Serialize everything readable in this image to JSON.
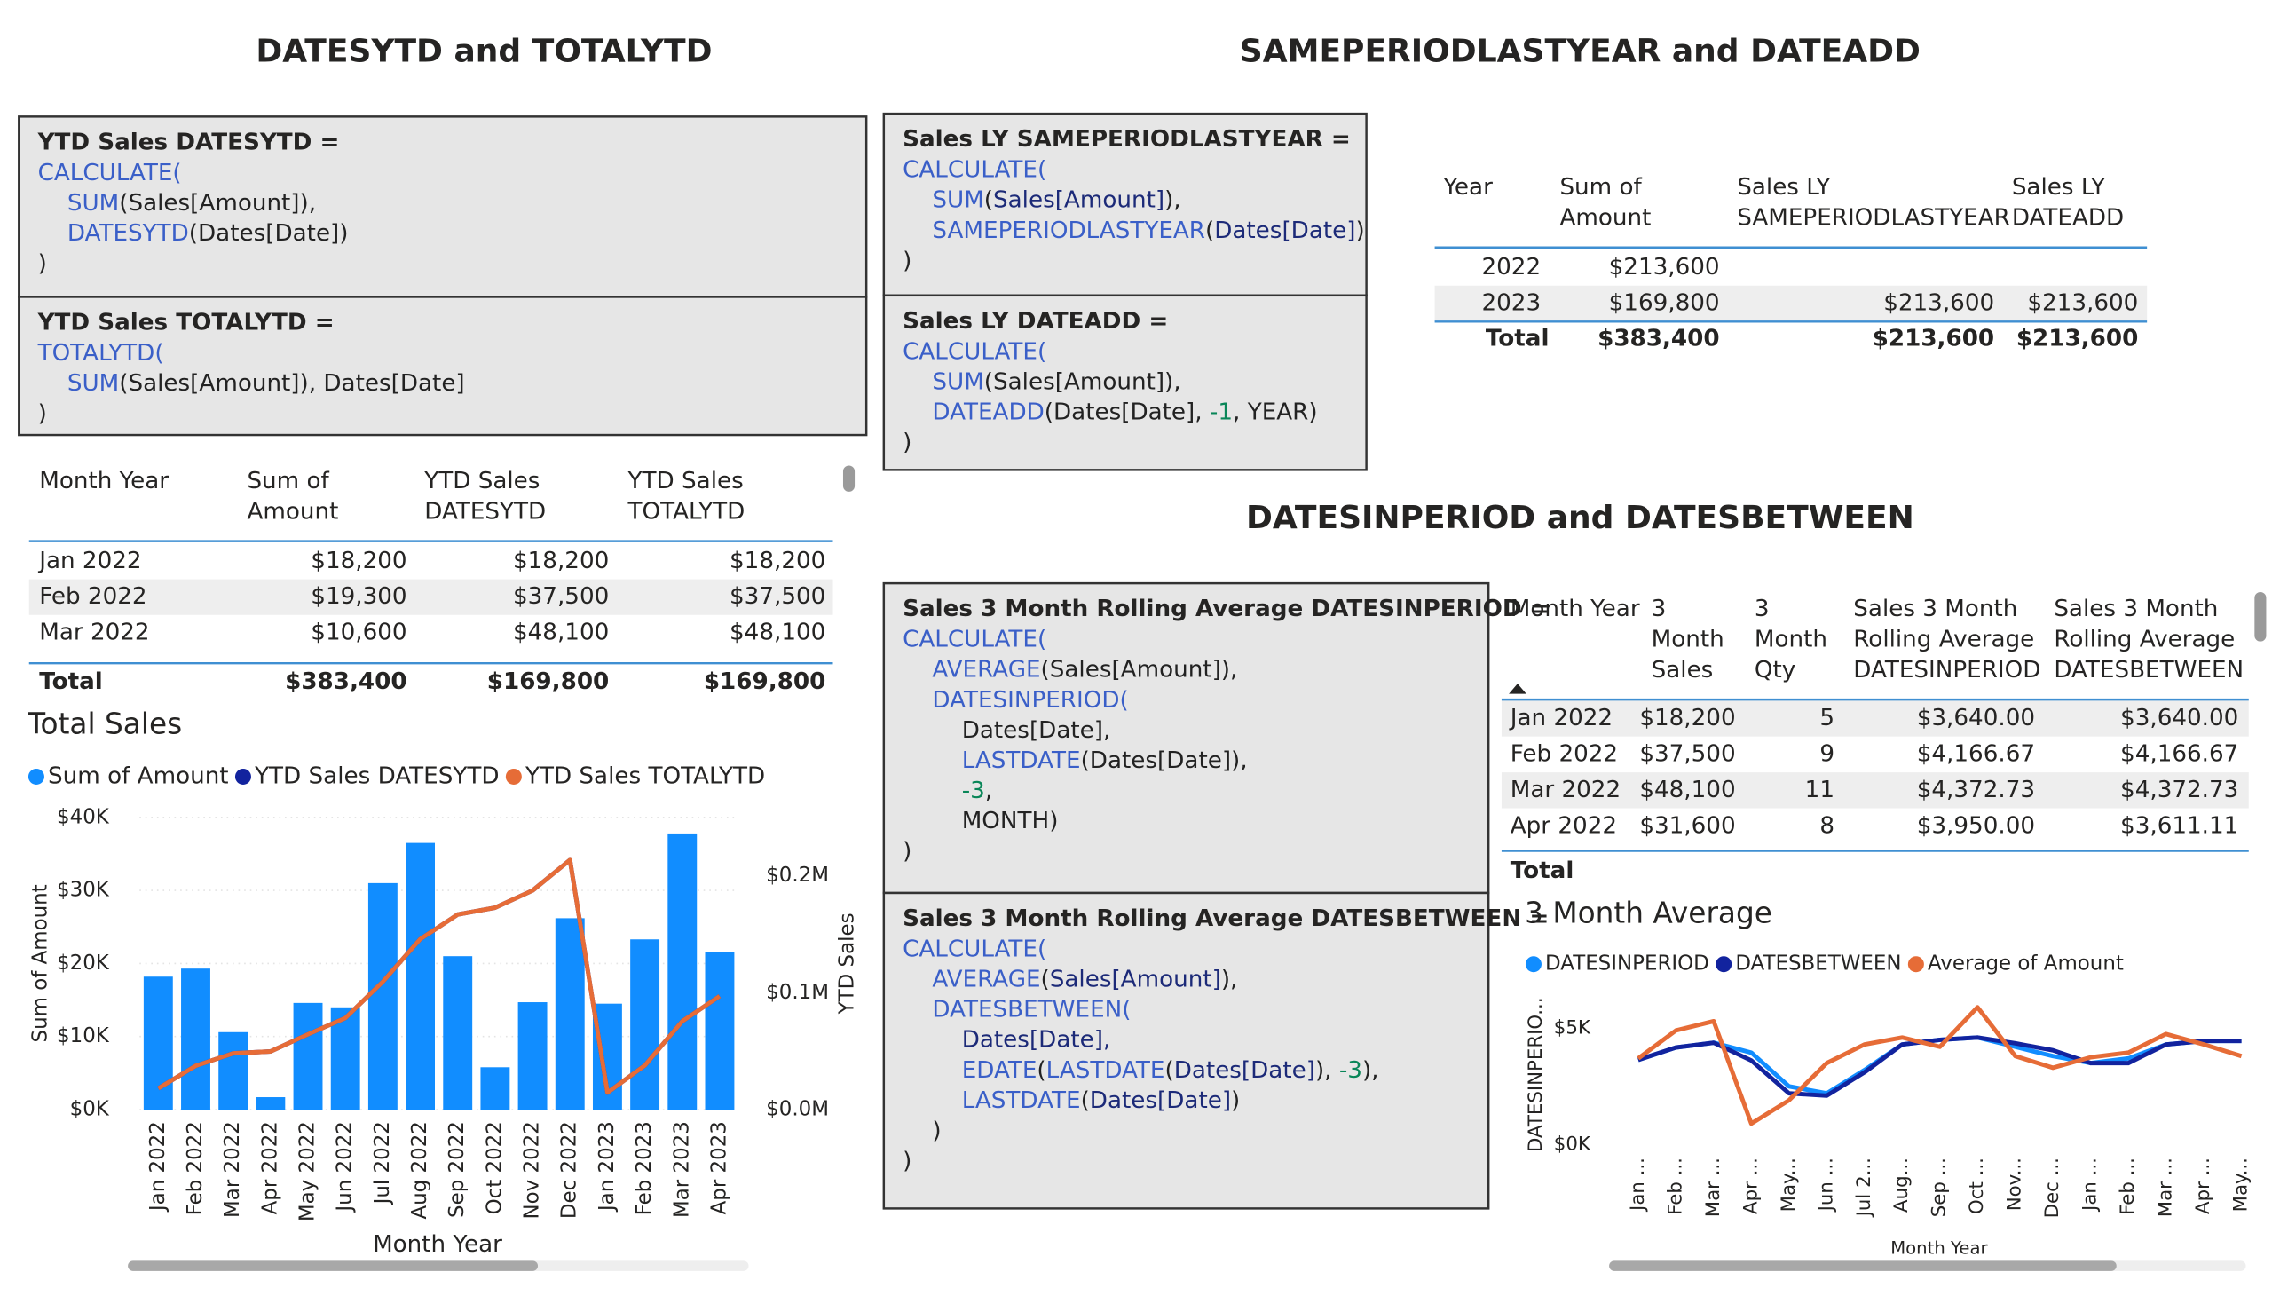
{
  "section_titles": [
    "DATESYTD and TOTALYTD",
    "SAMEPERIODLASTYEAR and DATEADD",
    "DATESINPERIOD and DATESBETWEEN"
  ],
  "code_boxes": [
    {
      "title": "YTD Sales DATESYTD =",
      "lines": [
        [
          [
            "CALCULATE(",
            "#3a5fc8"
          ]
        ],
        [
          [
            "    SUM",
            "#3a5fc8"
          ],
          [
            "(Sales[Amount]),",
            "#222222"
          ]
        ],
        [
          [
            "    DATESYTD",
            "#3a5fc8"
          ],
          [
            "(Dates[Date])",
            "#222222"
          ]
        ],
        [
          [
            ")",
            "#222222"
          ]
        ]
      ]
    },
    {
      "title": "YTD Sales TOTALYTD =",
      "lines": [
        [
          [
            "TOTALYTD(",
            "#3a5fc8"
          ]
        ],
        [
          [
            "    SUM",
            "#3a5fc8"
          ],
          [
            "(Sales[Amount]), Dates[Date]",
            "#222222"
          ]
        ],
        [
          [
            ")",
            "#222222"
          ]
        ]
      ]
    },
    {
      "title": "Sales LY SAMEPERIODLASTYEAR =",
      "lines": [
        [
          [
            "CALCULATE(",
            "#3a5fc8"
          ]
        ],
        [
          [
            "    SUM",
            "#3a5fc8"
          ],
          [
            "(",
            "#222222"
          ],
          [
            "Sales[Amount]",
            "#1c2a78"
          ],
          [
            "),",
            "#222222"
          ]
        ],
        [
          [
            "    SAMEPERIODLASTYEAR",
            "#3a5fc8"
          ],
          [
            "(",
            "#222222"
          ],
          [
            "Dates[Date]",
            "#1c2a78"
          ],
          [
            ")",
            "#222222"
          ]
        ],
        [
          [
            ")",
            "#222222"
          ]
        ]
      ]
    },
    {
      "title": "Sales LY DATEADD =",
      "lines": [
        [
          [
            "CALCULATE(",
            "#3a5fc8"
          ]
        ],
        [
          [
            "    SUM",
            "#3a5fc8"
          ],
          [
            "(Sales[Amount]),",
            "#222222"
          ]
        ],
        [
          [
            "    DATEADD",
            "#3a5fc8"
          ],
          [
            "(Dates[Date], ",
            "#222222"
          ],
          [
            "-1",
            "#098658"
          ],
          [
            ", YEAR)",
            "#222222"
          ]
        ],
        [
          [
            ")",
            "#222222"
          ]
        ]
      ]
    },
    {
      "title": "Sales 3 Month Rolling Average DATESINPERIOD =",
      "lines": [
        [
          [
            "CALCULATE(",
            "#3a5fc8"
          ]
        ],
        [
          [
            "    AVERAGE",
            "#3a5fc8"
          ],
          [
            "(Sales[Amount]),",
            "#222222"
          ]
        ],
        [
          [
            "    DATESINPERIOD(",
            "#3a5fc8"
          ]
        ],
        [
          [
            "        Dates[Date],",
            "#222222"
          ]
        ],
        [
          [
            "        LASTDATE",
            "#3a5fc8"
          ],
          [
            "(Dates[Date]),",
            "#222222"
          ]
        ],
        [
          [
            "        -3",
            "#098658"
          ],
          [
            ",",
            "#222222"
          ]
        ],
        [
          [
            "        MONTH)",
            "#222222"
          ]
        ],
        [
          [
            ")",
            "#222222"
          ]
        ]
      ]
    },
    {
      "title": "Sales 3 Month Rolling Average DATESBETWEEN =",
      "lines": [
        [
          [
            "CALCULATE(",
            "#3a5fc8"
          ]
        ],
        [
          [
            "    AVERAGE",
            "#3a5fc8"
          ],
          [
            "(",
            "#222222"
          ],
          [
            "Sales[Amount]",
            "#1c2a78"
          ],
          [
            "),",
            "#222222"
          ]
        ],
        [
          [
            "    DATESBETWEEN(",
            "#3a5fc8"
          ]
        ],
        [
          [
            "        Dates[Date],",
            "#1c2a78"
          ]
        ],
        [
          [
            "        EDATE",
            "#3a5fc8"
          ],
          [
            "(",
            "#222222"
          ],
          [
            "LASTDATE",
            "#3a5fc8"
          ],
          [
            "(",
            "#222222"
          ],
          [
            "Dates[Date]",
            "#1c2a78"
          ],
          [
            "), ",
            "#222222"
          ],
          [
            "-3",
            "#098658"
          ],
          [
            "),",
            "#222222"
          ]
        ],
        [
          [
            "        LASTDATE",
            "#3a5fc8"
          ],
          [
            "(",
            "#222222"
          ],
          [
            "Dates[Date]",
            "#1c2a78"
          ],
          [
            ")",
            "#222222"
          ]
        ],
        [
          [
            "    )",
            "#222222"
          ]
        ],
        [
          [
            ")",
            "#222222"
          ]
        ]
      ]
    }
  ],
  "tables": [
    {
      "headers": [
        [
          "Month Year"
        ],
        [
          "Sum of",
          "Amount"
        ],
        [
          "YTD Sales",
          "DATESYTD"
        ],
        [
          "YTD Sales",
          "TOTALYTD"
        ]
      ],
      "rows": [
        [
          "Jan 2022",
          "$18,200",
          "$18,200",
          "$18,200"
        ],
        [
          "Feb 2022",
          "$19,300",
          "$37,500",
          "$37,500"
        ],
        [
          "Mar 2022",
          "$10,600",
          "$48,100",
          "$48,100"
        ]
      ],
      "total": [
        "Total",
        "$383,400",
        "$169,800",
        "$169,800"
      ]
    },
    {
      "headers": [
        [
          "Year"
        ],
        [
          "Sum of",
          "Amount"
        ],
        [
          "Sales LY",
          "SAMEPERIODLASTYEAR"
        ],
        [
          "Sales LY",
          "DATEADD"
        ]
      ],
      "rows": [
        [
          "2022",
          "$213,600",
          null,
          null
        ],
        [
          "2023",
          "$169,800",
          "$213,600",
          "$213,600"
        ]
      ],
      "total": [
        "Total",
        "$383,400",
        "$213,600",
        "$213,600"
      ]
    },
    {
      "headers": [
        [
          "Month Year"
        ],
        [
          "3",
          "Month",
          "Sales"
        ],
        [
          "3",
          "Month",
          "Qty"
        ],
        [
          "Sales 3 Month",
          "Rolling Average",
          "DATESINPERIOD"
        ],
        [
          "Sales 3 Month",
          "Rolling Average",
          "DATESBETWEEN"
        ]
      ],
      "rows": [
        [
          "Jan 2022",
          "$18,200",
          "5",
          "$3,640.00",
          "$3,640.00"
        ],
        [
          "Feb 2022",
          "$37,500",
          "9",
          "$4,166.67",
          "$4,166.67"
        ],
        [
          "Mar 2022",
          "$48,100",
          "11",
          "$4,372.73",
          "$4,372.73"
        ],
        [
          "Apr 2022",
          "$31,600",
          "8",
          "$3,950.00",
          "$3,611.11"
        ]
      ],
      "total": [
        "Total"
      ]
    }
  ],
  "chart_data": [
    {
      "type": "combo",
      "title": "Total Sales",
      "x_label": "Month Year",
      "y_label": "Sum of Amount",
      "y2_label": "YTD Sales",
      "grid": true,
      "categories": [
        "Jan 2022",
        "Feb 2022",
        "Mar 2022",
        "Apr 2022",
        "May 2022",
        "Jun 2022",
        "Jul 2022",
        "Aug 2022",
        "Sep 2022",
        "Oct 2022",
        "Nov 2022",
        "Dec 2022",
        "Jan 2023",
        "Feb 2023",
        "Mar 2023",
        "Apr 2023"
      ],
      "series": [
        {
          "name": "Sum of Amount",
          "color": "#118dff",
          "type": "bar",
          "values": [
            18200,
            19300,
            10600,
            1700,
            14600,
            14000,
            31000,
            36500,
            21000,
            5800,
            14700,
            26200,
            14500,
            23300,
            37800,
            21600
          ]
        },
        {
          "name": "YTD Sales DATESYTD",
          "color": "#12239e",
          "type": "line",
          "axis": "y2",
          "values": [
            18200,
            37500,
            48100,
            49800,
            64400,
            78400,
            109400,
            145900,
            166900,
            172700,
            187400,
            213600,
            14500,
            37800,
            75600,
            97200
          ]
        },
        {
          "name": "YTD Sales TOTALYTD",
          "color": "#e66c37",
          "type": "line",
          "axis": "y2",
          "values": [
            18200,
            37500,
            48100,
            49800,
            64400,
            78400,
            109400,
            145900,
            166900,
            172700,
            187400,
            213600,
            14500,
            37800,
            75600,
            97200
          ]
        }
      ],
      "ylim": [
        0,
        40000
      ],
      "yticks": [
        {
          "value": 0,
          "label": "$0K"
        },
        {
          "value": 10000,
          "label": "$10K"
        },
        {
          "value": 20000,
          "label": "$20K"
        },
        {
          "value": 30000,
          "label": "$30K"
        },
        {
          "value": 40000,
          "label": "$40K"
        }
      ],
      "y2lim": [
        0,
        250000
      ],
      "y2ticks": [
        {
          "value": 0,
          "label": "$0.0M"
        },
        {
          "value": 100000,
          "label": "$0.1M"
        },
        {
          "value": 200000,
          "label": "$0.2M"
        }
      ]
    },
    {
      "type": "line",
      "title": "3 Month Average",
      "x_label": "Month Year",
      "y_label": "DATESINPERIO...",
      "grid": false,
      "categories": [
        "Jan ...",
        "Feb ...",
        "Mar ...",
        "Apr ...",
        "May...",
        "Jun ...",
        "Jul 2...",
        "Aug...",
        "Sep ...",
        "Oct ...",
        "Nov...",
        "Dec ...",
        "Jan ...",
        "Feb ...",
        "Mar ...",
        "Apr ...",
        "May..."
      ],
      "series": [
        {
          "name": "DATESINPERIOD",
          "color": "#118dff",
          "values": [
            3640,
            4167,
            4373,
            3950,
            2500,
            2200,
            3200,
            4300,
            4500,
            4600,
            4200,
            3800,
            3500,
            3700,
            4300,
            4450,
            4450
          ]
        },
        {
          "name": "DATESBETWEEN",
          "color": "#12239e",
          "values": [
            3640,
            4167,
            4373,
            3611,
            2200,
            2100,
            3100,
            4300,
            4500,
            4600,
            4350,
            4050,
            3500,
            3500,
            4300,
            4450,
            4450
          ]
        },
        {
          "name": "Average of Amount",
          "color": "#e66c37",
          "values": [
            3700,
            4900,
            5300,
            900,
            1900,
            3500,
            4300,
            4600,
            4200,
            5900,
            3800,
            3300,
            3750,
            3950,
            4750,
            4300,
            3800
          ]
        }
      ],
      "ylim": [
        0,
        6000
      ],
      "yticks": [
        {
          "value": 0,
          "label": "$0K"
        },
        {
          "value": 5000,
          "label": "$5K"
        }
      ]
    }
  ]
}
